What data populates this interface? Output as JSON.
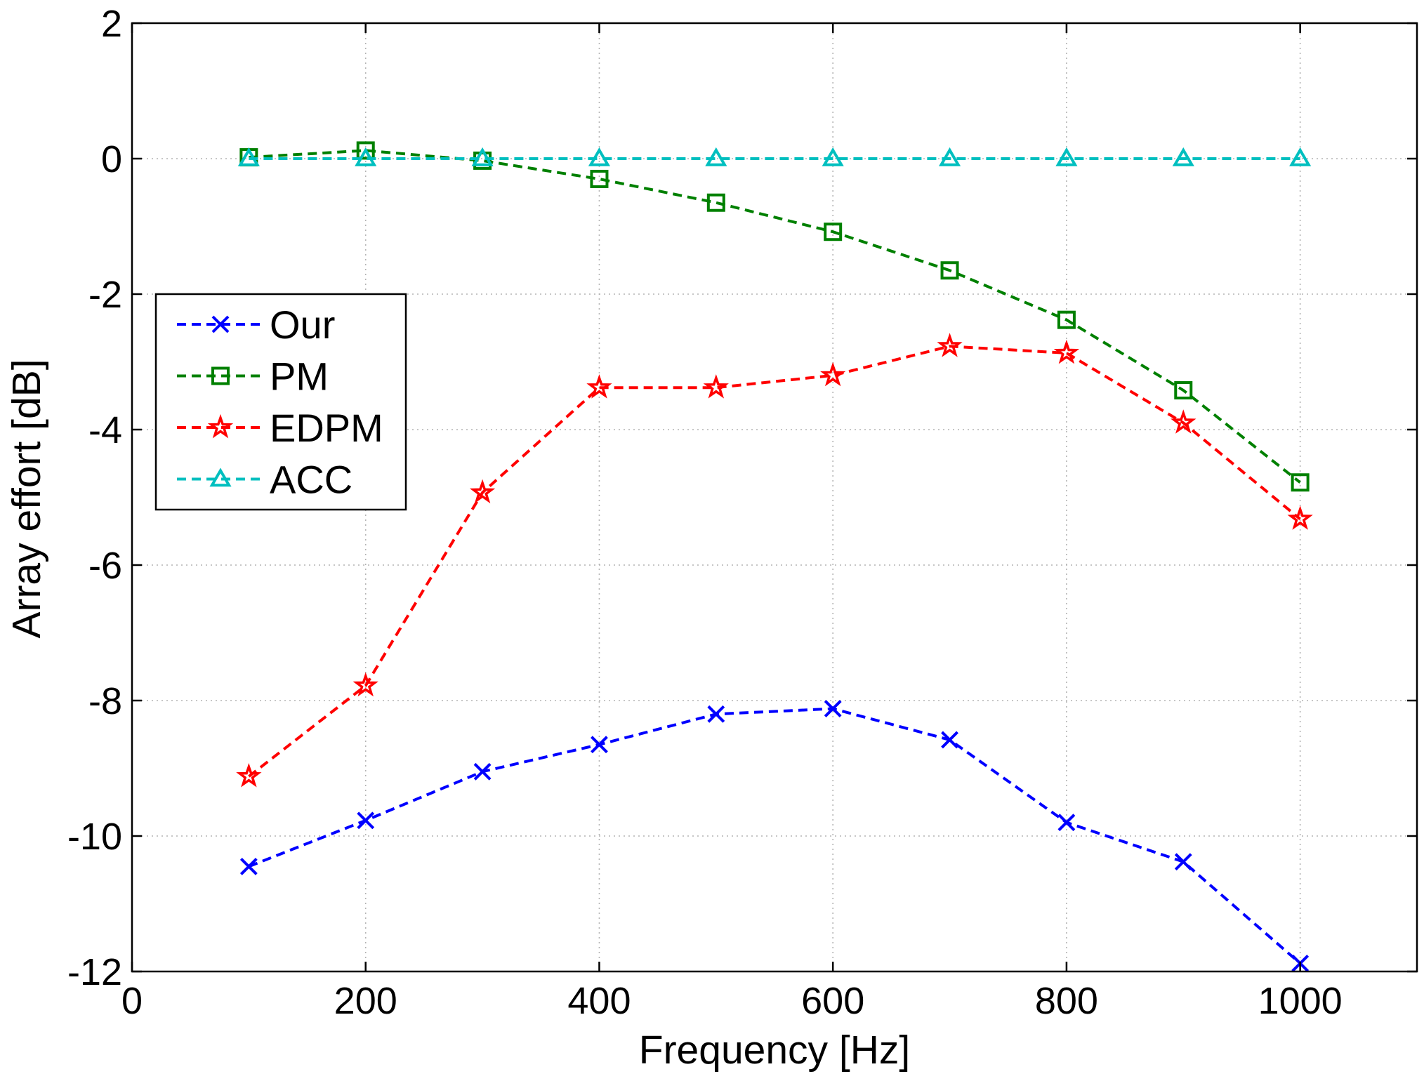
{
  "chart_data": {
    "type": "line",
    "title": "",
    "xlabel": "Frequency [Hz]",
    "ylabel": "Array effort [dB]",
    "xlim": [
      0,
      1100
    ],
    "ylim": [
      -12,
      2
    ],
    "xticks": [
      0,
      200,
      400,
      600,
      800,
      1000
    ],
    "yticks": [
      2,
      0,
      -2,
      -4,
      -6,
      -8,
      -10,
      -12
    ],
    "xtick_labels": [
      "0",
      "200",
      "400",
      "600",
      "800",
      "1000"
    ],
    "ytick_labels": [
      "2",
      "0",
      "-2",
      "-4",
      "-6",
      "-8",
      "-10",
      "-12"
    ],
    "grid": true,
    "legend_position": "center-left",
    "x": [
      100,
      200,
      300,
      400,
      500,
      600,
      700,
      800,
      900,
      1000
    ],
    "series": [
      {
        "name": "Our",
        "color": "#0000ff",
        "marker": "x",
        "values": [
          -10.45,
          -9.77,
          -9.05,
          -8.65,
          -8.2,
          -8.12,
          -8.58,
          -9.8,
          -10.38,
          -11.88
        ]
      },
      {
        "name": "PM",
        "color": "#008000",
        "marker": "square",
        "values": [
          0.02,
          0.12,
          -0.03,
          -0.3,
          -0.65,
          -1.08,
          -1.65,
          -2.38,
          -3.42,
          -4.78
        ]
      },
      {
        "name": "EDPM",
        "color": "#ff0000",
        "marker": "star",
        "values": [
          -9.12,
          -7.78,
          -4.93,
          -3.38,
          -3.38,
          -3.2,
          -2.77,
          -2.87,
          -3.9,
          -5.32
        ]
      },
      {
        "name": "ACC",
        "color": "#00bfbf",
        "marker": "triangle",
        "values": [
          0,
          0,
          0,
          0,
          0,
          0,
          0,
          0,
          0,
          0
        ]
      }
    ]
  }
}
